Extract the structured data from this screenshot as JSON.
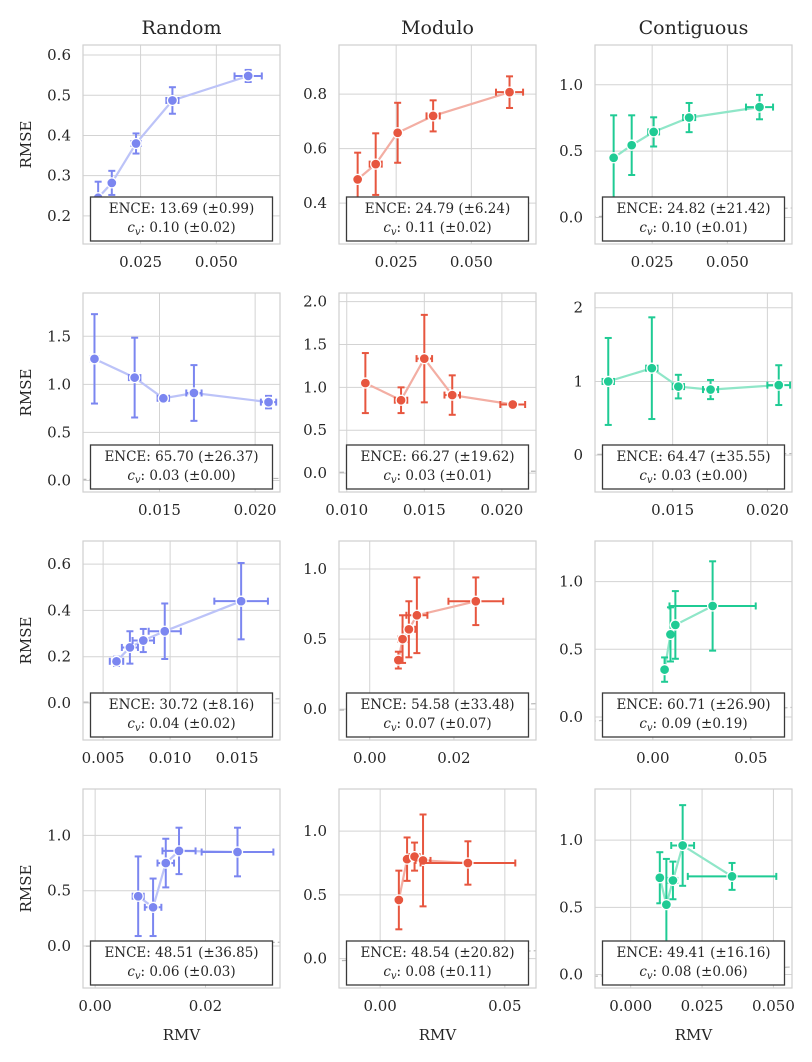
{
  "figure": {
    "column_titles": [
      "Random",
      "Modulo",
      "Contiguous"
    ],
    "ylabel": "RMSE",
    "xlabel": "RMV",
    "colors": [
      "#7b86f0",
      "#e7563f",
      "#1fcb94"
    ],
    "light_colors": [
      "#bcc3f8",
      "#f3aea3",
      "#8fe6c8"
    ]
  },
  "chart_data": [
    {
      "type": "scatter",
      "row": 0,
      "col": 0,
      "xlim": [
        0.006,
        0.071
      ],
      "ylim": [
        0.13,
        0.625
      ],
      "xticks": [
        0.025,
        0.05
      ],
      "xtick_labels": [
        "0.025",
        "0.050"
      ],
      "yticks": [
        0.2,
        0.3,
        0.4,
        0.5,
        0.6
      ],
      "ytick_labels": [
        "0.2",
        "0.3",
        "0.4",
        "0.5",
        "0.6"
      ],
      "points": [
        {
          "x": 0.011,
          "y": 0.245,
          "xerr": 0.0,
          "yerr": 0.04
        },
        {
          "x": 0.0155,
          "y": 0.282,
          "xerr": 0.001,
          "yerr": 0.03
        },
        {
          "x": 0.0235,
          "y": 0.38,
          "xerr": 0.0015,
          "yerr": 0.025
        },
        {
          "x": 0.0355,
          "y": 0.487,
          "xerr": 0.002,
          "yerr": 0.033
        },
        {
          "x": 0.0605,
          "y": 0.548,
          "xerr": 0.0045,
          "yerr": 0.015
        }
      ],
      "annotation_line1": "ENCE: 13.69 (±0.99)",
      "annotation_line2": "0.10 (±0.02)"
    },
    {
      "type": "scatter",
      "row": 0,
      "col": 1,
      "xlim": [
        0.006,
        0.0715
      ],
      "ylim": [
        0.25,
        0.98
      ],
      "xticks": [
        0.025,
        0.05
      ],
      "xtick_labels": [
        "0.025",
        "0.050"
      ],
      "yticks": [
        0.4,
        0.6,
        0.8
      ],
      "ytick_labels": [
        "0.4",
        "0.6",
        "0.8"
      ],
      "points": [
        {
          "x": 0.0122,
          "y": 0.487,
          "xerr": 0.0,
          "yerr": 0.098
        },
        {
          "x": 0.0182,
          "y": 0.543,
          "xerr": 0.002,
          "yerr": 0.113
        },
        {
          "x": 0.0255,
          "y": 0.658,
          "xerr": 0.0012,
          "yerr": 0.11
        },
        {
          "x": 0.0373,
          "y": 0.72,
          "xerr": 0.0022,
          "yerr": 0.057
        },
        {
          "x": 0.0627,
          "y": 0.807,
          "xerr": 0.0045,
          "yerr": 0.058
        }
      ],
      "annotation_line1": "ENCE: 24.79 (±6.24)",
      "annotation_line2": "0.11 (±0.02)"
    },
    {
      "type": "scatter",
      "row": 0,
      "col": 2,
      "xlim": [
        0.006,
        0.0715
      ],
      "ylim": [
        -0.2,
        1.3
      ],
      "xticks": [
        0.025,
        0.05
      ],
      "xtick_labels": [
        "0.025",
        "0.050"
      ],
      "yticks": [
        0.0,
        0.5,
        1.0
      ],
      "ytick_labels": [
        "0.0",
        "0.5",
        "1.0"
      ],
      "points": [
        {
          "x": 0.0122,
          "y": 0.45,
          "xerr": 0.0,
          "yerr": 0.32
        },
        {
          "x": 0.0182,
          "y": 0.545,
          "xerr": 0.0,
          "yerr": 0.225
        },
        {
          "x": 0.0255,
          "y": 0.645,
          "xerr": 0.0018,
          "yerr": 0.11
        },
        {
          "x": 0.0373,
          "y": 0.753,
          "xerr": 0.002,
          "yerr": 0.11
        },
        {
          "x": 0.0607,
          "y": 0.832,
          "xerr": 0.0045,
          "yerr": 0.092
        }
      ],
      "annotation_line1": "ENCE: 24.82 (±21.42)",
      "annotation_line2": "0.10 (±0.01)"
    },
    {
      "type": "scatter",
      "row": 1,
      "col": 0,
      "xlim": [
        0.011,
        0.0213
      ],
      "ylim": [
        -0.12,
        1.95
      ],
      "xticks": [
        0.015,
        0.02
      ],
      "xtick_labels": [
        "0.015",
        "0.020"
      ],
      "yticks": [
        0.0,
        0.5,
        1.0,
        1.5
      ],
      "ytick_labels": [
        "0.0",
        "0.5",
        "1.0",
        "1.5"
      ],
      "points": [
        {
          "x": 0.0116,
          "y": 1.265,
          "xerr": 0.0002,
          "yerr": 0.465
        },
        {
          "x": 0.0137,
          "y": 1.07,
          "xerr": 0.0003,
          "yerr": 0.415
        },
        {
          "x": 0.0152,
          "y": 0.855,
          "xerr": 0.0003,
          "yerr": 0.035
        },
        {
          "x": 0.0168,
          "y": 0.91,
          "xerr": 0.0004,
          "yerr": 0.29
        },
        {
          "x": 0.0207,
          "y": 0.815,
          "xerr": 0.0004,
          "yerr": 0.065
        }
      ],
      "annotation_line1": "ENCE: 65.70 (±26.37)",
      "annotation_line2": "0.03 (±0.00)"
    },
    {
      "type": "scatter",
      "row": 1,
      "col": 1,
      "xlim": [
        0.0095,
        0.0222
      ],
      "ylim": [
        -0.22,
        2.1
      ],
      "xticks": [
        0.01,
        0.015,
        0.02
      ],
      "xtick_labels": [
        "0.010",
        "0.015",
        "0.020"
      ],
      "yticks": [
        0.0,
        0.5,
        1.0,
        1.5,
        2.0
      ],
      "ytick_labels": [
        "0.0",
        "0.5",
        "1.0",
        "1.5",
        "2.0"
      ],
      "points": [
        {
          "x": 0.0112,
          "y": 1.05,
          "xerr": 0.0,
          "yerr": 0.35
        },
        {
          "x": 0.0135,
          "y": 0.85,
          "xerr": 0.0004,
          "yerr": 0.15
        },
        {
          "x": 0.015,
          "y": 1.335,
          "xerr": 0.0005,
          "yerr": 0.51
        },
        {
          "x": 0.0168,
          "y": 0.91,
          "xerr": 0.0005,
          "yerr": 0.23
        },
        {
          "x": 0.0207,
          "y": 0.8,
          "xerr": 0.0008,
          "yerr": 0.04
        }
      ],
      "annotation_line1": "ENCE: 66.27 (±19.62)",
      "annotation_line2": "0.03 (±0.01)"
    },
    {
      "type": "scatter",
      "row": 1,
      "col": 2,
      "xlim": [
        0.0109,
        0.0213
      ],
      "ylim": [
        -0.5,
        2.2
      ],
      "xticks": [
        0.015,
        0.02
      ],
      "xtick_labels": [
        "0.015",
        "0.020"
      ],
      "yticks": [
        0,
        1,
        2
      ],
      "ytick_labels": [
        "0",
        "1",
        "2"
      ],
      "points": [
        {
          "x": 0.0116,
          "y": 1.0,
          "xerr": 0.0003,
          "yerr": 0.59
        },
        {
          "x": 0.0139,
          "y": 1.18,
          "xerr": 0.0003,
          "yerr": 0.69
        },
        {
          "x": 0.0153,
          "y": 0.93,
          "xerr": 0.0003,
          "yerr": 0.16
        },
        {
          "x": 0.017,
          "y": 0.89,
          "xerr": 0.0004,
          "yerr": 0.13
        },
        {
          "x": 0.0206,
          "y": 0.95,
          "xerr": 0.0006,
          "yerr": 0.27
        }
      ],
      "annotation_line1": "ENCE: 64.47 (±35.55)",
      "annotation_line2": "0.03 (±0.00)"
    },
    {
      "type": "scatter",
      "row": 2,
      "col": 0,
      "xlim": [
        0.0035,
        0.0182
      ],
      "ylim": [
        -0.16,
        0.7
      ],
      "xticks": [
        0.005,
        0.01,
        0.015
      ],
      "xtick_labels": [
        "0.005",
        "0.010",
        "0.015"
      ],
      "yticks": [
        0.0,
        0.2,
        0.4,
        0.6
      ],
      "ytick_labels": [
        "0.0",
        "0.2",
        "0.4",
        "0.6"
      ],
      "points": [
        {
          "x": 0.006,
          "y": 0.18,
          "xerr": 0.0005,
          "yerr": 0.02
        },
        {
          "x": 0.007,
          "y": 0.24,
          "xerr": 0.0006,
          "yerr": 0.07
        },
        {
          "x": 0.008,
          "y": 0.27,
          "xerr": 0.0008,
          "yerr": 0.05
        },
        {
          "x": 0.0096,
          "y": 0.31,
          "xerr": 0.0012,
          "yerr": 0.12
        },
        {
          "x": 0.0153,
          "y": 0.44,
          "xerr": 0.002,
          "yerr": 0.165
        }
      ],
      "annotation_line1": "ENCE: 30.72 (±8.16)",
      "annotation_line2": "0.04 (±0.02)"
    },
    {
      "type": "scatter",
      "row": 2,
      "col": 1,
      "xlim": [
        -0.0073,
        0.0395
      ],
      "ylim": [
        -0.22,
        1.2
      ],
      "xticks": [
        0.0,
        0.02
      ],
      "xtick_labels": [
        "0.00",
        "0.02"
      ],
      "yticks": [
        0.0,
        0.5,
        1.0
      ],
      "ytick_labels": [
        "0.0",
        "0.5",
        "1.0"
      ],
      "points": [
        {
          "x": 0.0068,
          "y": 0.35,
          "xerr": 0.0005,
          "yerr": 0.06
        },
        {
          "x": 0.0078,
          "y": 0.5,
          "xerr": 0.001,
          "yerr": 0.17
        },
        {
          "x": 0.0093,
          "y": 0.57,
          "xerr": 0.0015,
          "yerr": 0.2
        },
        {
          "x": 0.0112,
          "y": 0.67,
          "xerr": 0.0025,
          "yerr": 0.27
        },
        {
          "x": 0.0252,
          "y": 0.77,
          "xerr": 0.0065,
          "yerr": 0.17
        }
      ],
      "annotation_line1": "ENCE: 54.58 (±33.48)",
      "annotation_line2": "0.07 (±0.07)"
    },
    {
      "type": "scatter",
      "row": 2,
      "col": 2,
      "xlim": [
        -0.0295,
        0.071
      ],
      "ylim": [
        -0.17,
        1.3
      ],
      "xticks": [
        0.0,
        0.05
      ],
      "xtick_labels": [
        "0.00",
        "0.05"
      ],
      "yticks": [
        0.0,
        0.5,
        1.0
      ],
      "ytick_labels": [
        "0.0",
        "0.5",
        "1.0"
      ],
      "points": [
        {
          "x": 0.006,
          "y": 0.35,
          "xerr": 0.0005,
          "yerr": 0.09
        },
        {
          "x": 0.009,
          "y": 0.61,
          "xerr": 0.001,
          "yerr": 0.2
        },
        {
          "x": 0.0115,
          "y": 0.68,
          "xerr": 0.0015,
          "yerr": 0.25
        },
        {
          "x": 0.0305,
          "y": 0.82,
          "xerr": 0.022,
          "yerr": 0.33
        }
      ],
      "annotation_line1": "ENCE: 60.71 (±26.90)",
      "annotation_line2": "0.09 (±0.19)"
    },
    {
      "type": "scatter",
      "row": 3,
      "col": 0,
      "xlim": [
        -0.0022,
        0.0335
      ],
      "ylim": [
        -0.38,
        1.42
      ],
      "xticks": [
        0.0,
        0.02
      ],
      "xtick_labels": [
        "0.00",
        "0.02"
      ],
      "yticks": [
        0.0,
        0.5,
        1.0
      ],
      "ytick_labels": [
        "0.0",
        "0.5",
        "1.0"
      ],
      "points": [
        {
          "x": 0.0078,
          "y": 0.45,
          "xerr": 0.001,
          "yerr": 0.36
        },
        {
          "x": 0.0105,
          "y": 0.35,
          "xerr": 0.0015,
          "yerr": 0.26
        },
        {
          "x": 0.0128,
          "y": 0.75,
          "xerr": 0.0015,
          "yerr": 0.22
        },
        {
          "x": 0.0152,
          "y": 0.86,
          "xerr": 0.003,
          "yerr": 0.21
        },
        {
          "x": 0.0258,
          "y": 0.85,
          "xerr": 0.0065,
          "yerr": 0.22
        }
      ],
      "annotation_line1": "ENCE: 48.51 (±36.85)",
      "annotation_line2": "0.06 (±0.03)"
    },
    {
      "type": "scatter",
      "row": 3,
      "col": 1,
      "xlim": [
        -0.0165,
        0.0625
      ],
      "ylim": [
        -0.23,
        1.33
      ],
      "xticks": [
        0.0,
        0.05
      ],
      "xtick_labels": [
        "0.00",
        "0.05"
      ],
      "yticks": [
        0.0,
        0.5,
        1.0
      ],
      "ytick_labels": [
        "0.0",
        "0.5",
        "1.0"
      ],
      "points": [
        {
          "x": 0.0075,
          "y": 0.46,
          "xerr": 0.0,
          "yerr": 0.23
        },
        {
          "x": 0.0108,
          "y": 0.78,
          "xerr": 0.001,
          "yerr": 0.17
        },
        {
          "x": 0.0138,
          "y": 0.8,
          "xerr": 0.002,
          "yerr": 0.11
        },
        {
          "x": 0.0172,
          "y": 0.77,
          "xerr": 0.003,
          "yerr": 0.36
        },
        {
          "x": 0.0352,
          "y": 0.75,
          "xerr": 0.019,
          "yerr": 0.17
        }
      ],
      "annotation_line1": "ENCE: 48.54 (±20.82)",
      "annotation_line2": "0.08 (±0.11)"
    },
    {
      "type": "scatter",
      "row": 3,
      "col": 2,
      "xlim": [
        -0.0125,
        0.0565
      ],
      "ylim": [
        -0.1,
        1.38
      ],
      "xticks": [
        0.0,
        0.025,
        0.05
      ],
      "xtick_labels": [
        "0.000",
        "0.025",
        "0.050"
      ],
      "yticks": [
        0.0,
        0.5,
        1.0
      ],
      "ytick_labels": [
        "0.0",
        "0.5",
        "1.0"
      ],
      "points": [
        {
          "x": 0.0102,
          "y": 0.72,
          "xerr": 0.0,
          "yerr": 0.19
        },
        {
          "x": 0.0125,
          "y": 0.52,
          "xerr": 0.001,
          "yerr": 0.34
        },
        {
          "x": 0.0148,
          "y": 0.7,
          "xerr": 0.0015,
          "yerr": 0.14
        },
        {
          "x": 0.0182,
          "y": 0.96,
          "xerr": 0.004,
          "yerr": 0.3
        },
        {
          "x": 0.0355,
          "y": 0.73,
          "xerr": 0.0155,
          "yerr": 0.1
        }
      ],
      "annotation_line1": "ENCE: 49.41 (±16.16)",
      "annotation_line2": "0.08 (±0.06)"
    }
  ]
}
